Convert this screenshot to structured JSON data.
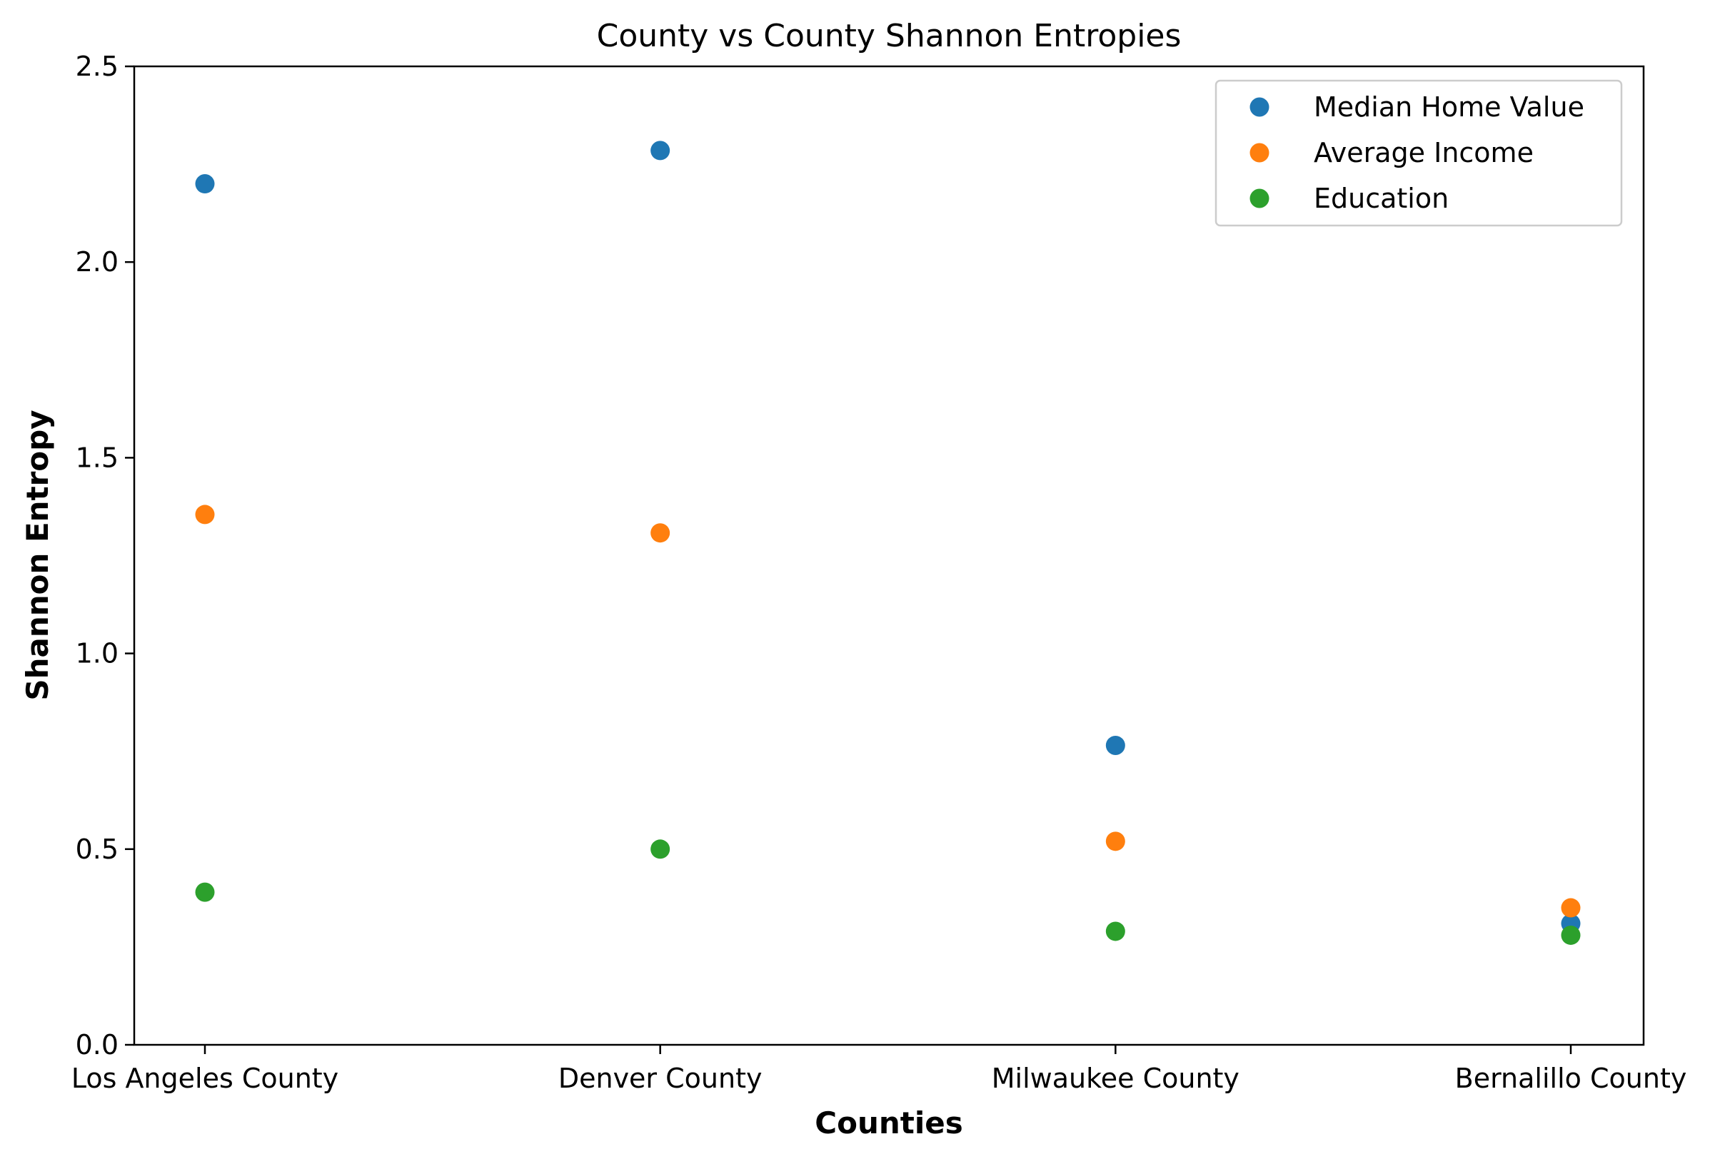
{
  "chart_data": {
    "type": "scatter",
    "title": "County vs County Shannon Entropies",
    "xlabel": "Counties",
    "ylabel": "Shannon Entropy",
    "categories": [
      "Los Angeles County",
      "Denver County",
      "Milwaukee County",
      "Bernalillo County"
    ],
    "ylim": [
      0,
      2.5
    ],
    "yticks": [
      "0.0",
      "0.5",
      "1.0",
      "1.5",
      "2.0",
      "2.5"
    ],
    "grid": false,
    "legend_position": "top-right",
    "series": [
      {
        "name": "Median Home Value",
        "color": "#1f77b4",
        "values": [
          2.2,
          2.285,
          0.765,
          0.31
        ]
      },
      {
        "name": "Average Income",
        "color": "#ff7f0e",
        "values": [
          1.355,
          1.308,
          0.52,
          0.35
        ]
      },
      {
        "name": "Education",
        "color": "#2ca02c",
        "values": [
          0.39,
          0.5,
          0.29,
          0.28
        ]
      }
    ]
  }
}
